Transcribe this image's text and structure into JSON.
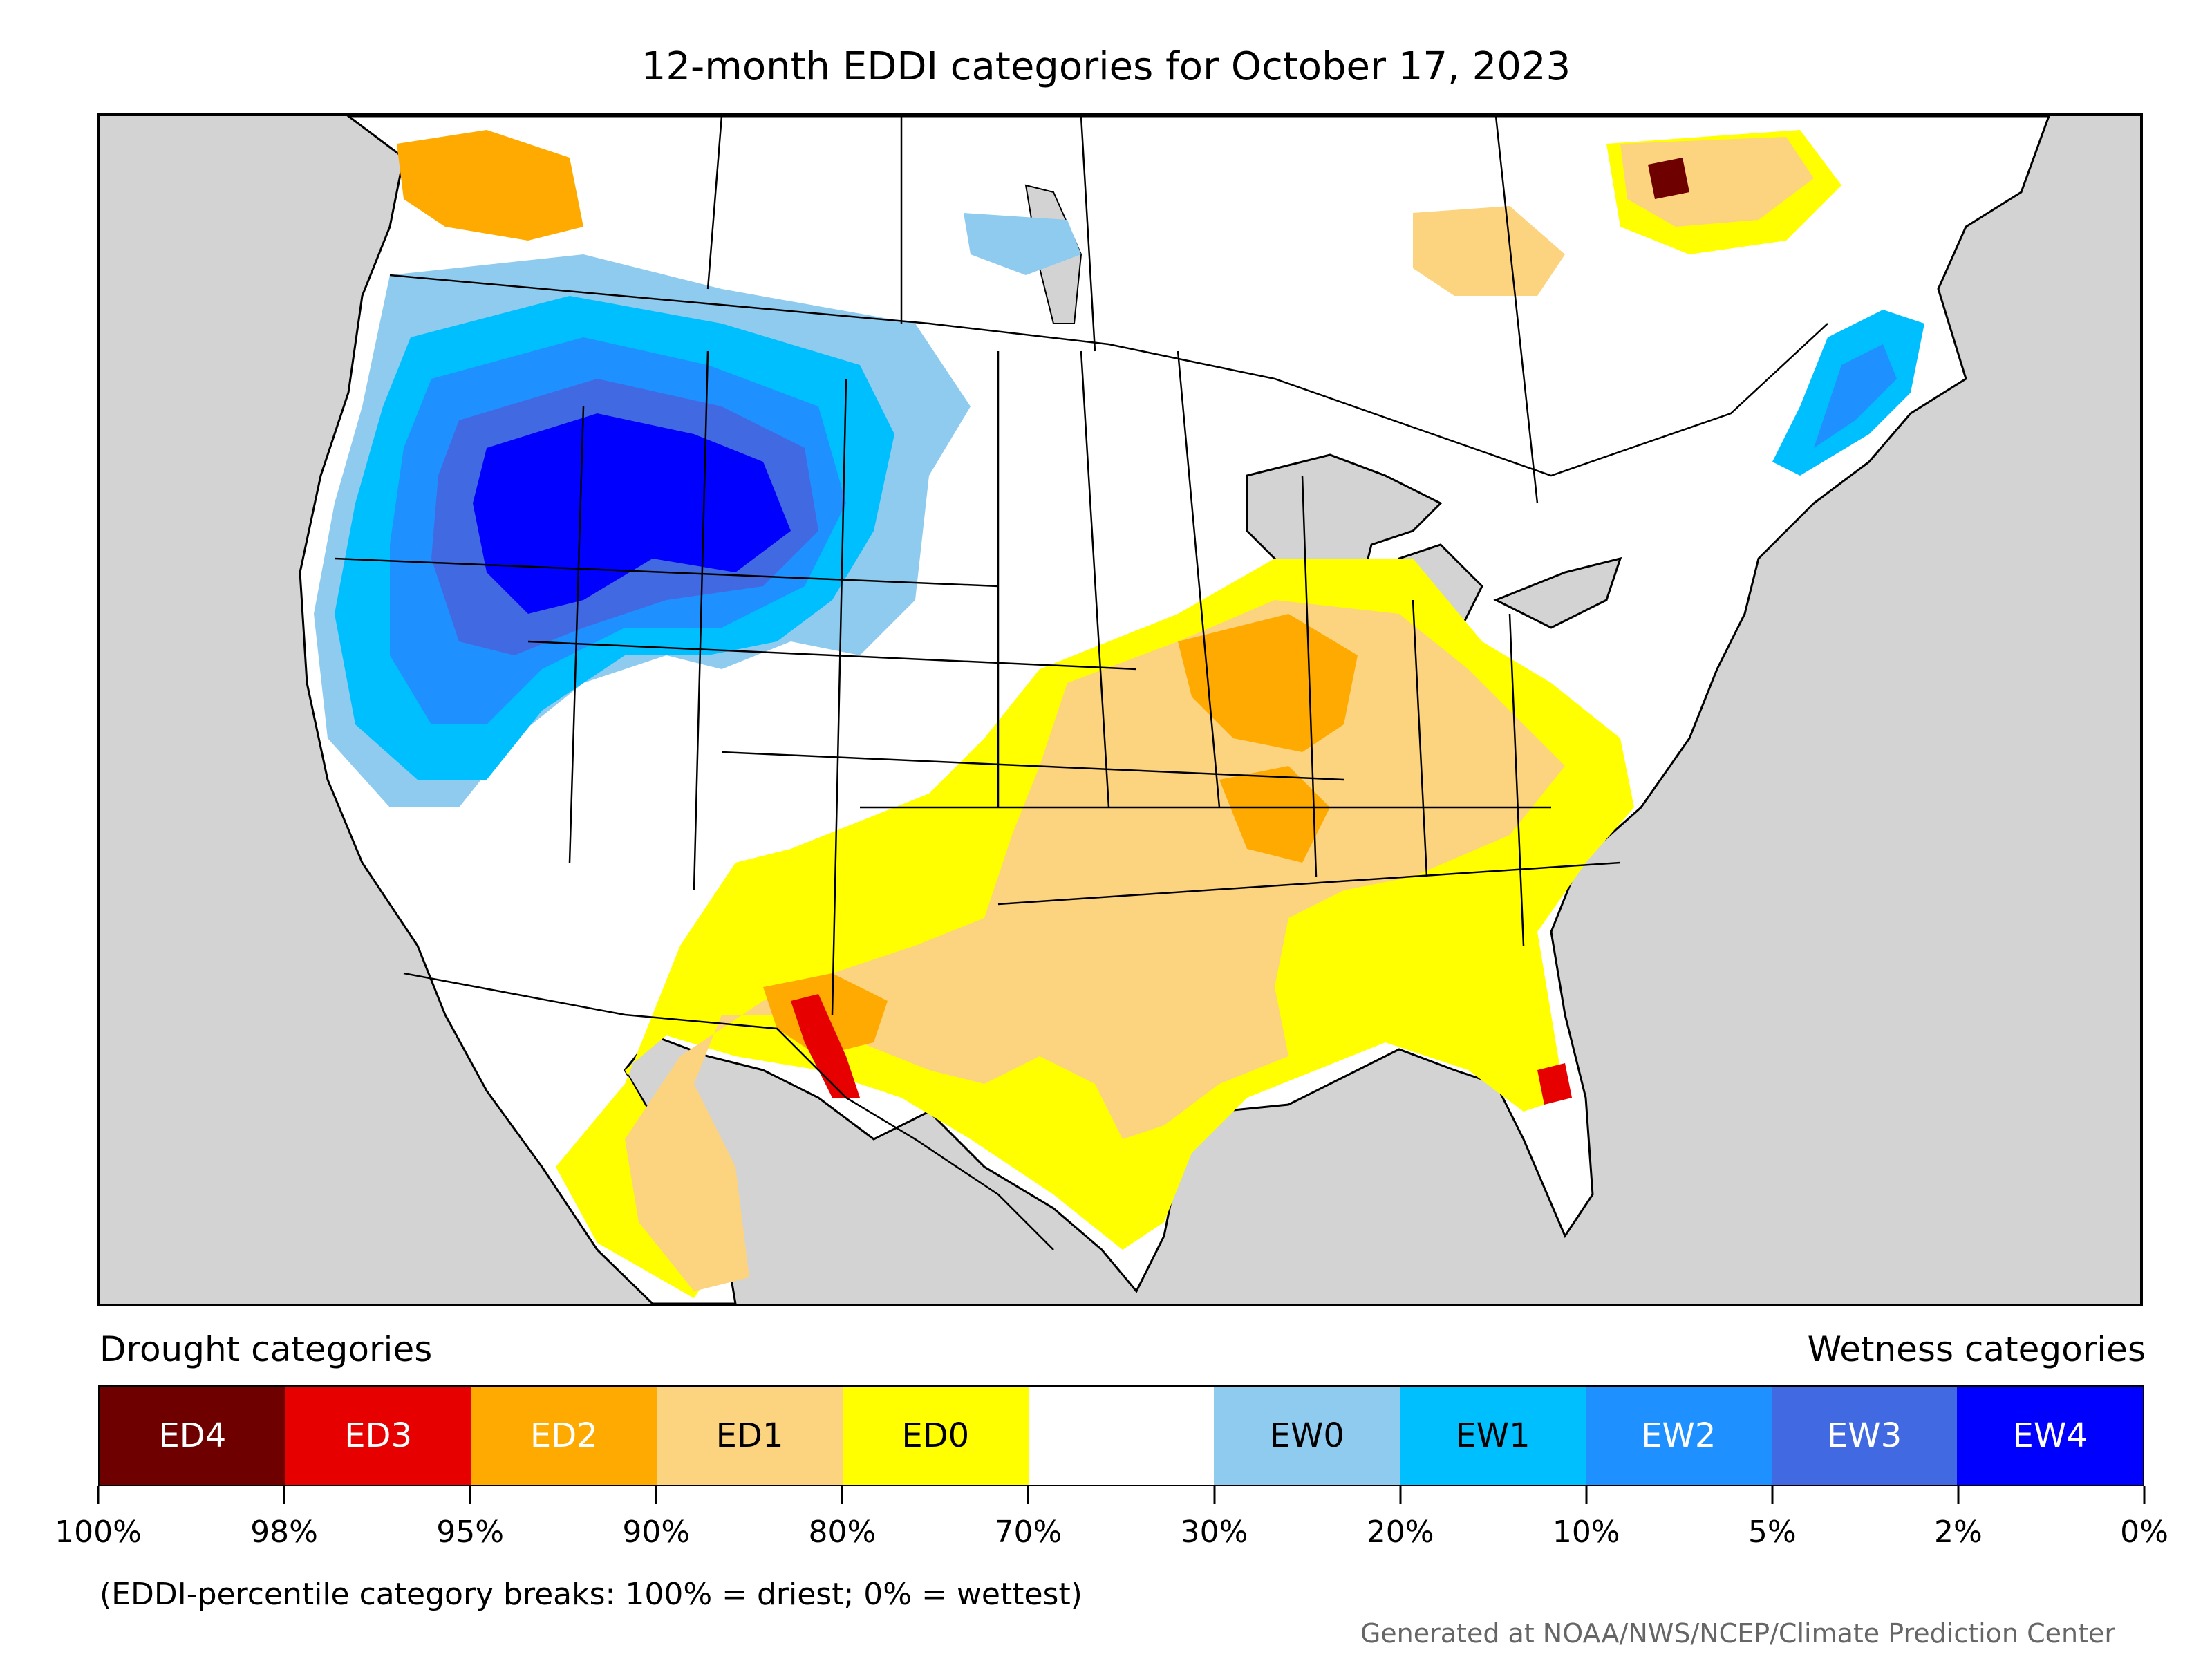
{
  "title": "12-month EDDI categories for October 17, 2023",
  "legend": {
    "left_heading": "Drought categories",
    "right_heading": "Wetness categories",
    "categories": [
      {
        "label": "ED4",
        "color": "#6e0000",
        "text_color": "#ffffff"
      },
      {
        "label": "ED3",
        "color": "#e60000",
        "text_color": "#ffffff"
      },
      {
        "label": "ED2",
        "color": "#ffaa00",
        "text_color": "#ffffff"
      },
      {
        "label": "ED1",
        "color": "#fcd37f",
        "text_color": "#000000"
      },
      {
        "label": "ED0",
        "color": "#ffff00",
        "text_color": "#000000"
      },
      {
        "label": "",
        "color": "#ffffff",
        "text_color": "#000000"
      },
      {
        "label": "EW0",
        "color": "#8ecbef",
        "text_color": "#000000"
      },
      {
        "label": "EW1",
        "color": "#00bfff",
        "text_color": "#000000"
      },
      {
        "label": "EW2",
        "color": "#1e90ff",
        "text_color": "#ffffff"
      },
      {
        "label": "EW3",
        "color": "#4169e1",
        "text_color": "#ffffff"
      },
      {
        "label": "EW4",
        "color": "#0000ff",
        "text_color": "#ffffff"
      }
    ],
    "ticks": [
      "100%",
      "98%",
      "95%",
      "90%",
      "80%",
      "70%",
      "30%",
      "20%",
      "10%",
      "5%",
      "2%",
      "0%"
    ]
  },
  "note": "(EDDI-percentile category breaks: 100% = driest; 0% = wettest)",
  "credit": "Generated at NOAA/NWS/NCEP/Climate Prediction Center",
  "map": {
    "background_color": "#d3d3d3",
    "land_color": "#ffffff",
    "line_color": "#000000"
  }
}
